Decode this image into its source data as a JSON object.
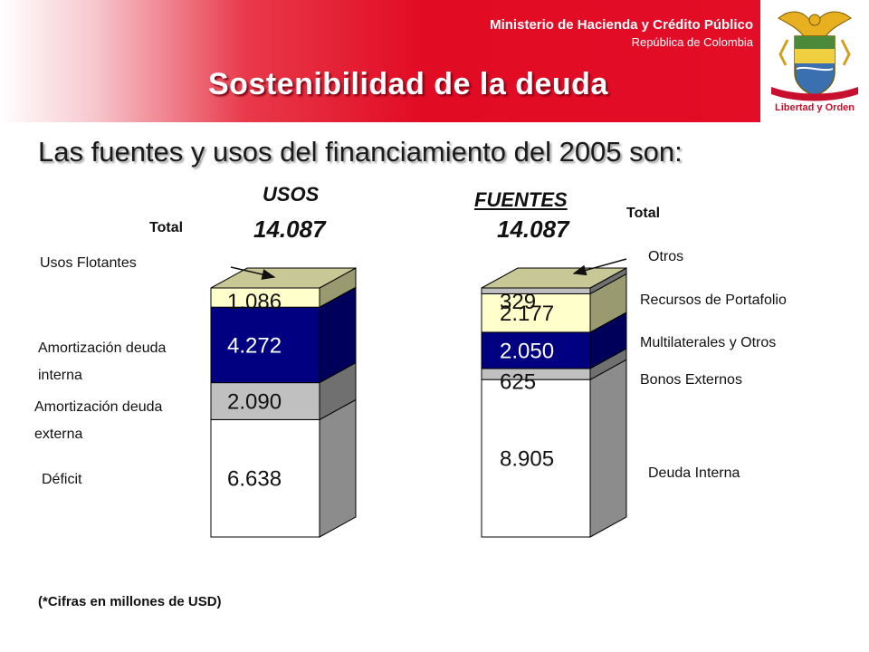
{
  "header": {
    "ministry": "Ministerio de Hacienda y Crédito Público",
    "country": "República de Colombia",
    "title": "Sostenibilidad de la deuda",
    "motto": "Libertad y Orden"
  },
  "subtitle": "Las fuentes y usos del financiamiento del 2005 son:",
  "note": "(*Cifras en  millones de USD)",
  "colors": {
    "banner_red": "#e10b24",
    "white": "#ffffff",
    "gray_light": "#c0c0c0",
    "cream": "#ffffcc",
    "navy": "#000080",
    "khaki": "#c8c896"
  },
  "chart_data": [
    {
      "type": "bar",
      "subtype": "stacked-3d",
      "title": "USOS",
      "total_label": "Total",
      "total_value": "14.087",
      "segments": [
        {
          "name": "Déficit",
          "value": 6638,
          "value_label": "6.638",
          "color": "#ffffff"
        },
        {
          "name": "Amortización deuda externa",
          "name_lines": [
            "Amortización deuda",
            "externa"
          ],
          "value": 2090,
          "value_label": "2.090",
          "color": "#c0c0c0"
        },
        {
          "name": "Amortización deuda interna",
          "name_lines": [
            "Amortización deuda",
            "interna"
          ],
          "value": 4272,
          "value_label": "4.272",
          "color": "#000080"
        },
        {
          "name": "Usos Flotantes",
          "value": 1086,
          "value_label": "1.086",
          "color": "#ffffcc"
        }
      ],
      "top_color": "#c8c896"
    },
    {
      "type": "bar",
      "subtype": "stacked-3d",
      "title": "FUENTES",
      "total_label": "Total",
      "total_value": "14.087",
      "segments": [
        {
          "name": "Deuda Interna",
          "value": 8905,
          "value_label": "8.905",
          "color": "#ffffff"
        },
        {
          "name": "Bonos Externos",
          "value": 625,
          "value_label": "625",
          "color": "#c0c0c0"
        },
        {
          "name": "Multilaterales y Otros",
          "value": 2050,
          "value_label": "2.050",
          "color": "#000080"
        },
        {
          "name": "Recursos de Portafolio",
          "value": 2177,
          "value_label": "2.177",
          "color": "#ffffcc"
        },
        {
          "name": "Otros",
          "value": 329,
          "value_label": "329",
          "color": "#c0c0c0"
        }
      ],
      "top_color": "#c8c896"
    }
  ]
}
